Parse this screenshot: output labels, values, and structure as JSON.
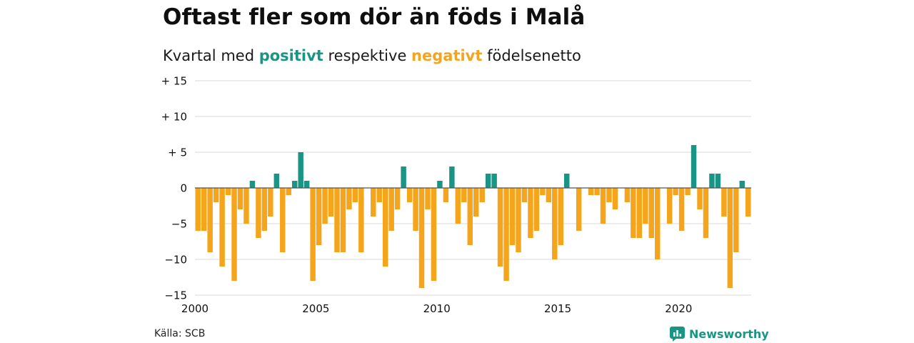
{
  "header": {
    "title": "Oftast fler som dör än föds i Malå",
    "subtitle_pre": "Kvartal med ",
    "subtitle_pos": "positivt",
    "subtitle_mid": " respektive ",
    "subtitle_neg": "negativt",
    "subtitle_post": " födelsenetto"
  },
  "footer": {
    "source": "Källa: SCB",
    "brand": "Newsworthy"
  },
  "colors": {
    "positive": "#1a9485",
    "negative": "#f4a51c",
    "grid": "#d9d9d9",
    "zero_line": "#555555"
  },
  "chart_data": {
    "type": "bar",
    "x_start": 2000,
    "x_end": 2023,
    "quarters_per_year": 4,
    "x_ticks": [
      2000,
      2005,
      2010,
      2015,
      2020
    ],
    "x_tick_labels": [
      "2000",
      "2005",
      "2010",
      "2015",
      "2020"
    ],
    "y_ticks": [
      15,
      10,
      5,
      0,
      -5,
      -10,
      -15
    ],
    "y_tick_labels": [
      "+ 15",
      "+ 10",
      "+  5",
      "0",
      "−5",
      "−10",
      "−15"
    ],
    "ylim": [
      -15,
      15
    ],
    "grid": true,
    "series": [
      {
        "values": [
          -6,
          -6,
          -9,
          -2,
          -11,
          -1,
          -13,
          -3,
          -5,
          1,
          -7,
          -6,
          -4,
          2,
          -9,
          -1,
          1,
          5,
          1,
          -13,
          -8,
          -5,
          -4,
          -9,
          -9,
          -3,
          -2,
          -9,
          0,
          -4,
          -2,
          -11,
          -6,
          -3,
          3,
          -2,
          -6,
          -14,
          -3,
          -13,
          1,
          -2,
          3,
          -5,
          -2,
          -8,
          -4,
          -2,
          2,
          2,
          -11,
          -13,
          -8,
          -9,
          -2,
          -7,
          -6,
          -1,
          -2,
          -10,
          -8,
          2,
          0,
          -6,
          0,
          -1,
          -1,
          -5,
          -2,
          -3,
          0,
          -2,
          -7,
          -7,
          -5,
          -7,
          -10,
          0,
          -5,
          -1,
          -6,
          -1,
          6,
          -3,
          -7,
          2,
          2,
          -4,
          -14,
          -9,
          1,
          -4
        ]
      }
    ]
  }
}
